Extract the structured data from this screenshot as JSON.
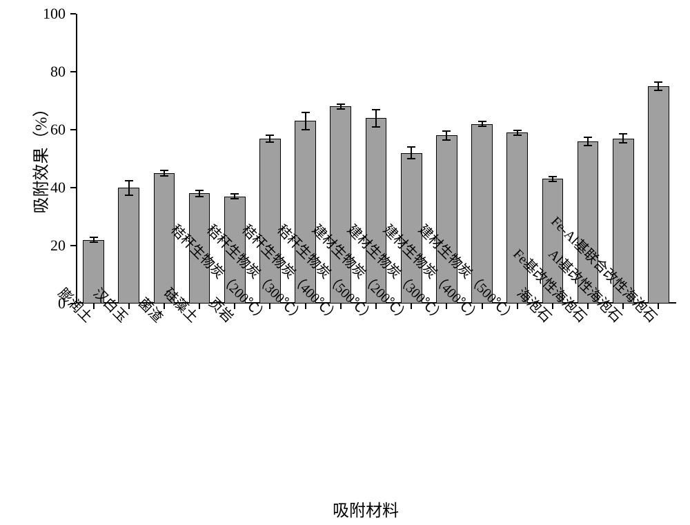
{
  "chart": {
    "type": "bar",
    "y_axis": {
      "title": "吸附效果（%）",
      "min": 0,
      "max": 100,
      "ticks": [
        0,
        20,
        40,
        60,
        80,
        100
      ],
      "title_fontsize": 24,
      "tick_fontsize": 22
    },
    "x_axis": {
      "title": "吸附材料",
      "title_fontsize": 24,
      "tick_fontsize": 20,
      "label_rotation": 45
    },
    "plot": {
      "bar_fill": "#a0a0a0",
      "bar_border": "#000000",
      "error_color": "#000000",
      "background": "#ffffff",
      "bar_width_ratio": 0.6,
      "error_cap_width": 12
    },
    "categories": [
      "膨润土",
      "汉白玉",
      "菌渣",
      "硅藻土",
      "页岩",
      "秸秆生物炭（200℃）",
      "秸秆生物炭（300℃）",
      "秸秆生物炭（400℃）",
      "秸秆生物炭（500℃）",
      "建材生物炭（200℃）",
      "建材生物炭（300℃）",
      "建材生物炭（400℃）",
      "建材生物炭（500℃）",
      "海泡石",
      "Fe基改性海泡石",
      "Al基改性海泡石",
      "Fe-Al基联合改性海泡石"
    ],
    "values": [
      22,
      40,
      45,
      38,
      37,
      57,
      63,
      68,
      64,
      52,
      58,
      62,
      59,
      43,
      56,
      57,
      75
    ],
    "errors": [
      0.8,
      2.5,
      1.0,
      1.0,
      0.8,
      1.2,
      3.0,
      0.8,
      3.0,
      2.0,
      1.5,
      0.8,
      0.8,
      0.8,
      1.5,
      1.5,
      1.5
    ]
  }
}
